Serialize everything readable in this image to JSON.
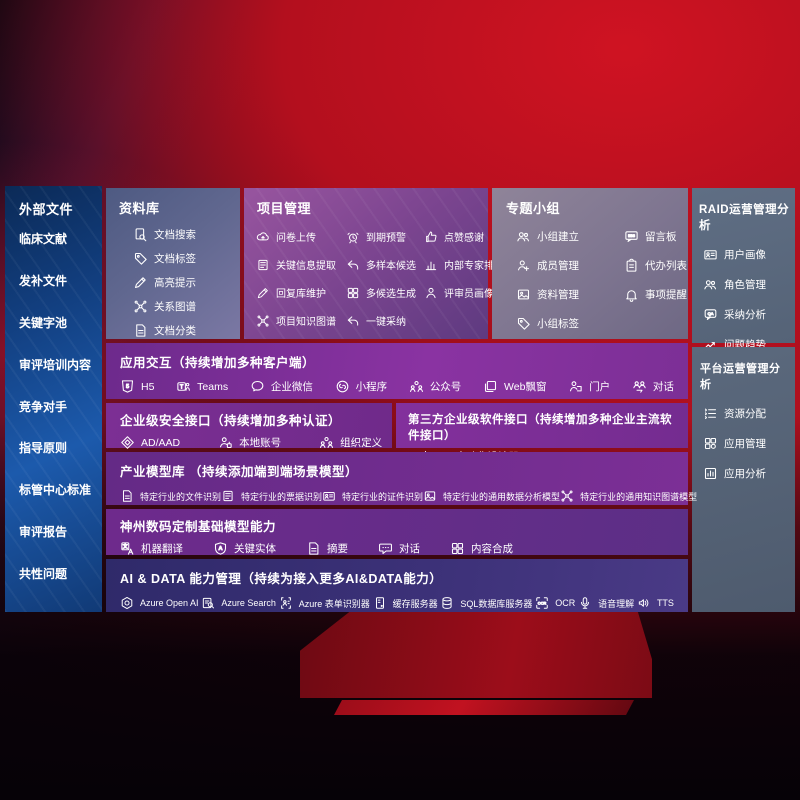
{
  "palette": {
    "background_red": "#b30f1e",
    "sidebar_blue": "#1c5aac",
    "panel_purple": "#7c2f94",
    "panel_slate": "#5f6e84",
    "band_indigo": "#3c3178",
    "text": "#ffffff"
  },
  "left_panel": {
    "title": "外部文件",
    "items": [
      "临床文献",
      "发补文件",
      "关键字池",
      "审评培训内容",
      "竞争对手",
      "指导原则",
      "标管中心标准",
      "审评报告",
      "共性问题"
    ]
  },
  "top_panels": {
    "repository": {
      "title": "资料库",
      "items": [
        {
          "icon": "doc-search",
          "label": "文档搜索"
        },
        {
          "icon": "tag",
          "label": "文档标签"
        },
        {
          "icon": "pen",
          "label": "高亮提示"
        },
        {
          "icon": "graph",
          "label": "关系图谱"
        },
        {
          "icon": "doc",
          "label": "文档分类"
        }
      ]
    },
    "project": {
      "title": "项目管理",
      "items": [
        {
          "icon": "cloud-up",
          "label": "问卷上传"
        },
        {
          "icon": "alarm",
          "label": "到期预警"
        },
        {
          "icon": "thumb",
          "label": "点赞感谢"
        },
        {
          "icon": "doc-lines",
          "label": "关键信息提取"
        },
        {
          "icon": "reply",
          "label": "多样本候选"
        },
        {
          "icon": "podium",
          "label": "内部专家排名"
        },
        {
          "icon": "pen",
          "label": "回复库维护"
        },
        {
          "icon": "grid4",
          "label": "多候选生成"
        },
        {
          "icon": "person",
          "label": "评审员画像"
        },
        {
          "icon": "graph",
          "label": "项目知识图谱"
        },
        {
          "icon": "reply",
          "label": "一键采纳"
        }
      ]
    },
    "groups": {
      "title": "专题小组",
      "items": [
        {
          "icon": "people",
          "label": "小组建立"
        },
        {
          "icon": "bbs",
          "label": "留言板"
        },
        {
          "icon": "person-add",
          "label": "成员管理"
        },
        {
          "icon": "clipboard",
          "label": "代办列表"
        },
        {
          "icon": "album",
          "label": "资料管理"
        },
        {
          "icon": "bell",
          "label": "事项提醒"
        },
        {
          "icon": "tag",
          "label": "小组标签"
        }
      ]
    }
  },
  "right_panels": {
    "raid": {
      "title": "RAID运营管理分析",
      "items": [
        {
          "icon": "idcard",
          "label": "用户画像"
        },
        {
          "icon": "people",
          "label": "角色管理"
        },
        {
          "icon": "chat-qa",
          "label": "采纳分析"
        },
        {
          "icon": "trend",
          "label": "问题趋势"
        }
      ]
    },
    "platform": {
      "title": "平台运营管理分析",
      "items": [
        {
          "icon": "list",
          "label": "资源分配"
        },
        {
          "icon": "apps",
          "label": "应用管理"
        },
        {
          "icon": "chart-analysis",
          "label": "应用分析"
        }
      ]
    }
  },
  "bands": {
    "interaction": {
      "title": "应用交互（持续增加多种客户端）",
      "items": [
        {
          "icon": "h5",
          "label": "H5"
        },
        {
          "icon": "teams",
          "label": "Teams"
        },
        {
          "icon": "wecom",
          "label": "企业微信"
        },
        {
          "icon": "miniprogram",
          "label": "小程序"
        },
        {
          "icon": "org",
          "label": "公众号"
        },
        {
          "icon": "window",
          "label": "Web飘窗"
        },
        {
          "icon": "portal",
          "label": "门户"
        },
        {
          "icon": "dialog",
          "label": "对话"
        }
      ]
    },
    "security": {
      "title": "企业级安全接口（持续增加多种认证）",
      "items": [
        {
          "icon": "diamond",
          "label": "AD/AAD"
        },
        {
          "icon": "person-key",
          "label": "本地账号"
        },
        {
          "icon": "org",
          "label": "组织定义"
        }
      ]
    },
    "third_party": {
      "title": "第三方企业级软件接口（持续增加多种企业主流软件接口）",
      "items": [
        {
          "icon": "api-gear",
          "label": "API自动化设计器"
        }
      ]
    },
    "industry_models": {
      "title": "产业模型库 （持续添加端到端场景模型）",
      "items": [
        {
          "icon": "doc",
          "label": "特定行业的文件识别"
        },
        {
          "icon": "doc-lines",
          "label": "特定行业的票据识别"
        },
        {
          "icon": "idcard",
          "label": "特定行业的证件识别"
        },
        {
          "icon": "album",
          "label": "特定行业的通用数据分析模型"
        },
        {
          "icon": "graph",
          "label": "特定行业的通用知识图谱模型"
        }
      ]
    },
    "base_models": {
      "title": "神州数码定制基础模型能力",
      "items": [
        {
          "icon": "translate",
          "label": "机器翻译"
        },
        {
          "icon": "shield-a",
          "label": "关键实体"
        },
        {
          "icon": "doc",
          "label": "摘要"
        },
        {
          "icon": "chat",
          "label": "对话"
        },
        {
          "icon": "grid4",
          "label": "内容合成"
        }
      ]
    },
    "ai_data": {
      "title": "AI & DATA 能力管理（持续为接入更多AI&DATA能力）",
      "items": [
        {
          "icon": "openai",
          "label": "Azure Open AI"
        },
        {
          "icon": "search-doc",
          "label": "Azure Search"
        },
        {
          "icon": "form",
          "label": "Azure 表单识别器"
        },
        {
          "icon": "server",
          "label": "缓存服务器"
        },
        {
          "icon": "database",
          "label": "SQL数据库服务器"
        },
        {
          "icon": "ocr",
          "label": "OCR"
        },
        {
          "icon": "speech",
          "label": "语音理解"
        },
        {
          "icon": "tts",
          "label": "TTS"
        }
      ]
    }
  }
}
